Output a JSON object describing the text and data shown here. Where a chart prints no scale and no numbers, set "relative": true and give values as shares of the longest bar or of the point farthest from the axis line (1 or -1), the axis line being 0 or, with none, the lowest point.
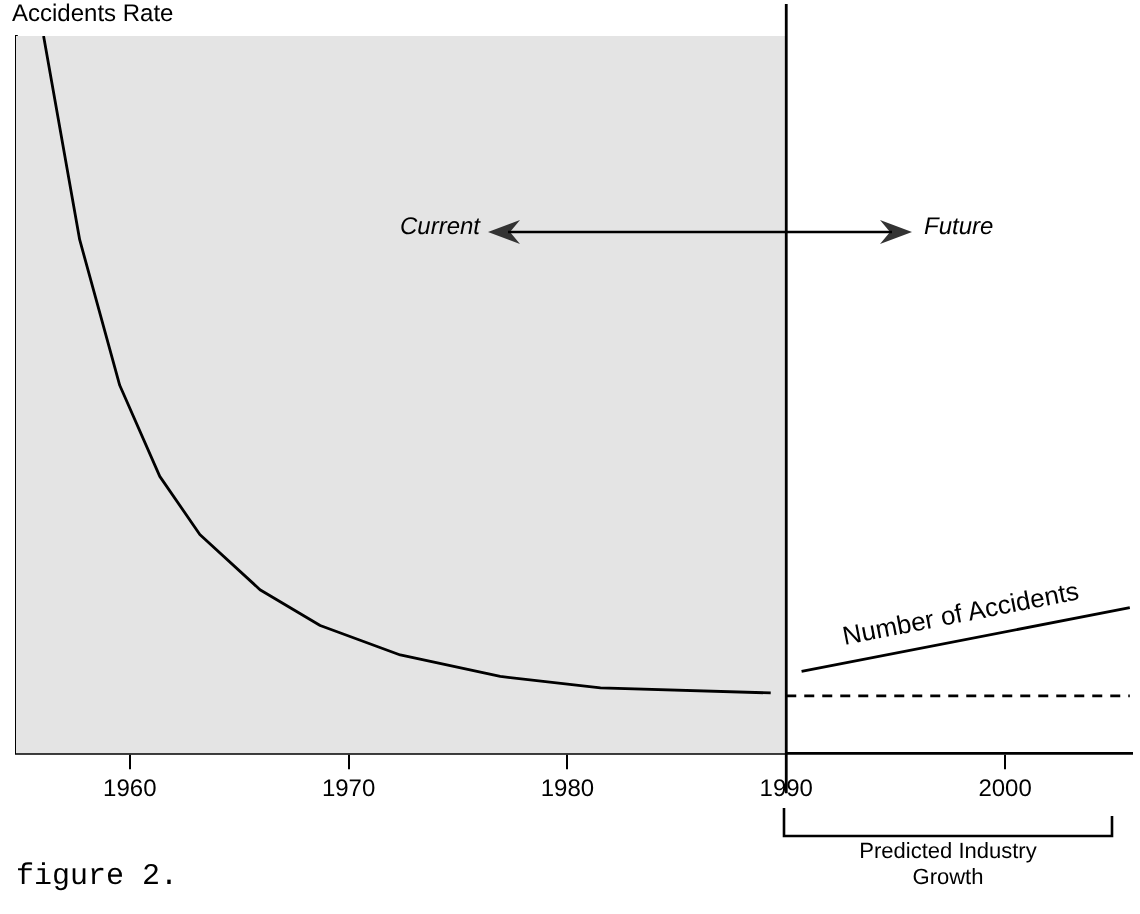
{
  "chart_data": {
    "type": "line",
    "ylabel": "Accidents Rate",
    "relative": true,
    "marker": "none",
    "legend": false,
    "grid": false,
    "xlim": [
      1954.8,
      2005.8
    ],
    "xticks": [
      1960,
      1970,
      1980,
      1990,
      2000
    ],
    "series": [
      {
        "color": "#000000",
        "line_style": "solid",
        "x": [
          1956.06,
          1957.71,
          1959.54,
          1961.37,
          1963.2,
          1965.95,
          1968.7,
          1972.36,
          1976.93,
          1981.51,
          1989.29
        ],
        "values": [
          1.0,
          0.716,
          0.513,
          0.386,
          0.305,
          0.228,
          0.178,
          0.137,
          0.107,
          0.091,
          0.084
        ]
      },
      {
        "color": "#000000",
        "line_style": "dashed",
        "x": [
          1990,
          2005.7
        ],
        "values": [
          0.08,
          0.08
        ]
      },
      {
        "name": "Number of Accidents",
        "color": "#000000",
        "line_style": "solid",
        "x": [
          1990.7,
          2005.7
        ],
        "values": [
          0.114,
          0.203
        ]
      }
    ],
    "ref_lines": [
      {
        "axis": "x",
        "value": 1990,
        "color": "#000000"
      }
    ],
    "bands": [
      {
        "axis": "x",
        "from": 1954.8,
        "to": 1990,
        "color": "#e4e4e4"
      }
    ],
    "annotations": [
      "Current",
      "Future",
      "Predicted Industry Growth",
      "figure 2."
    ]
  }
}
